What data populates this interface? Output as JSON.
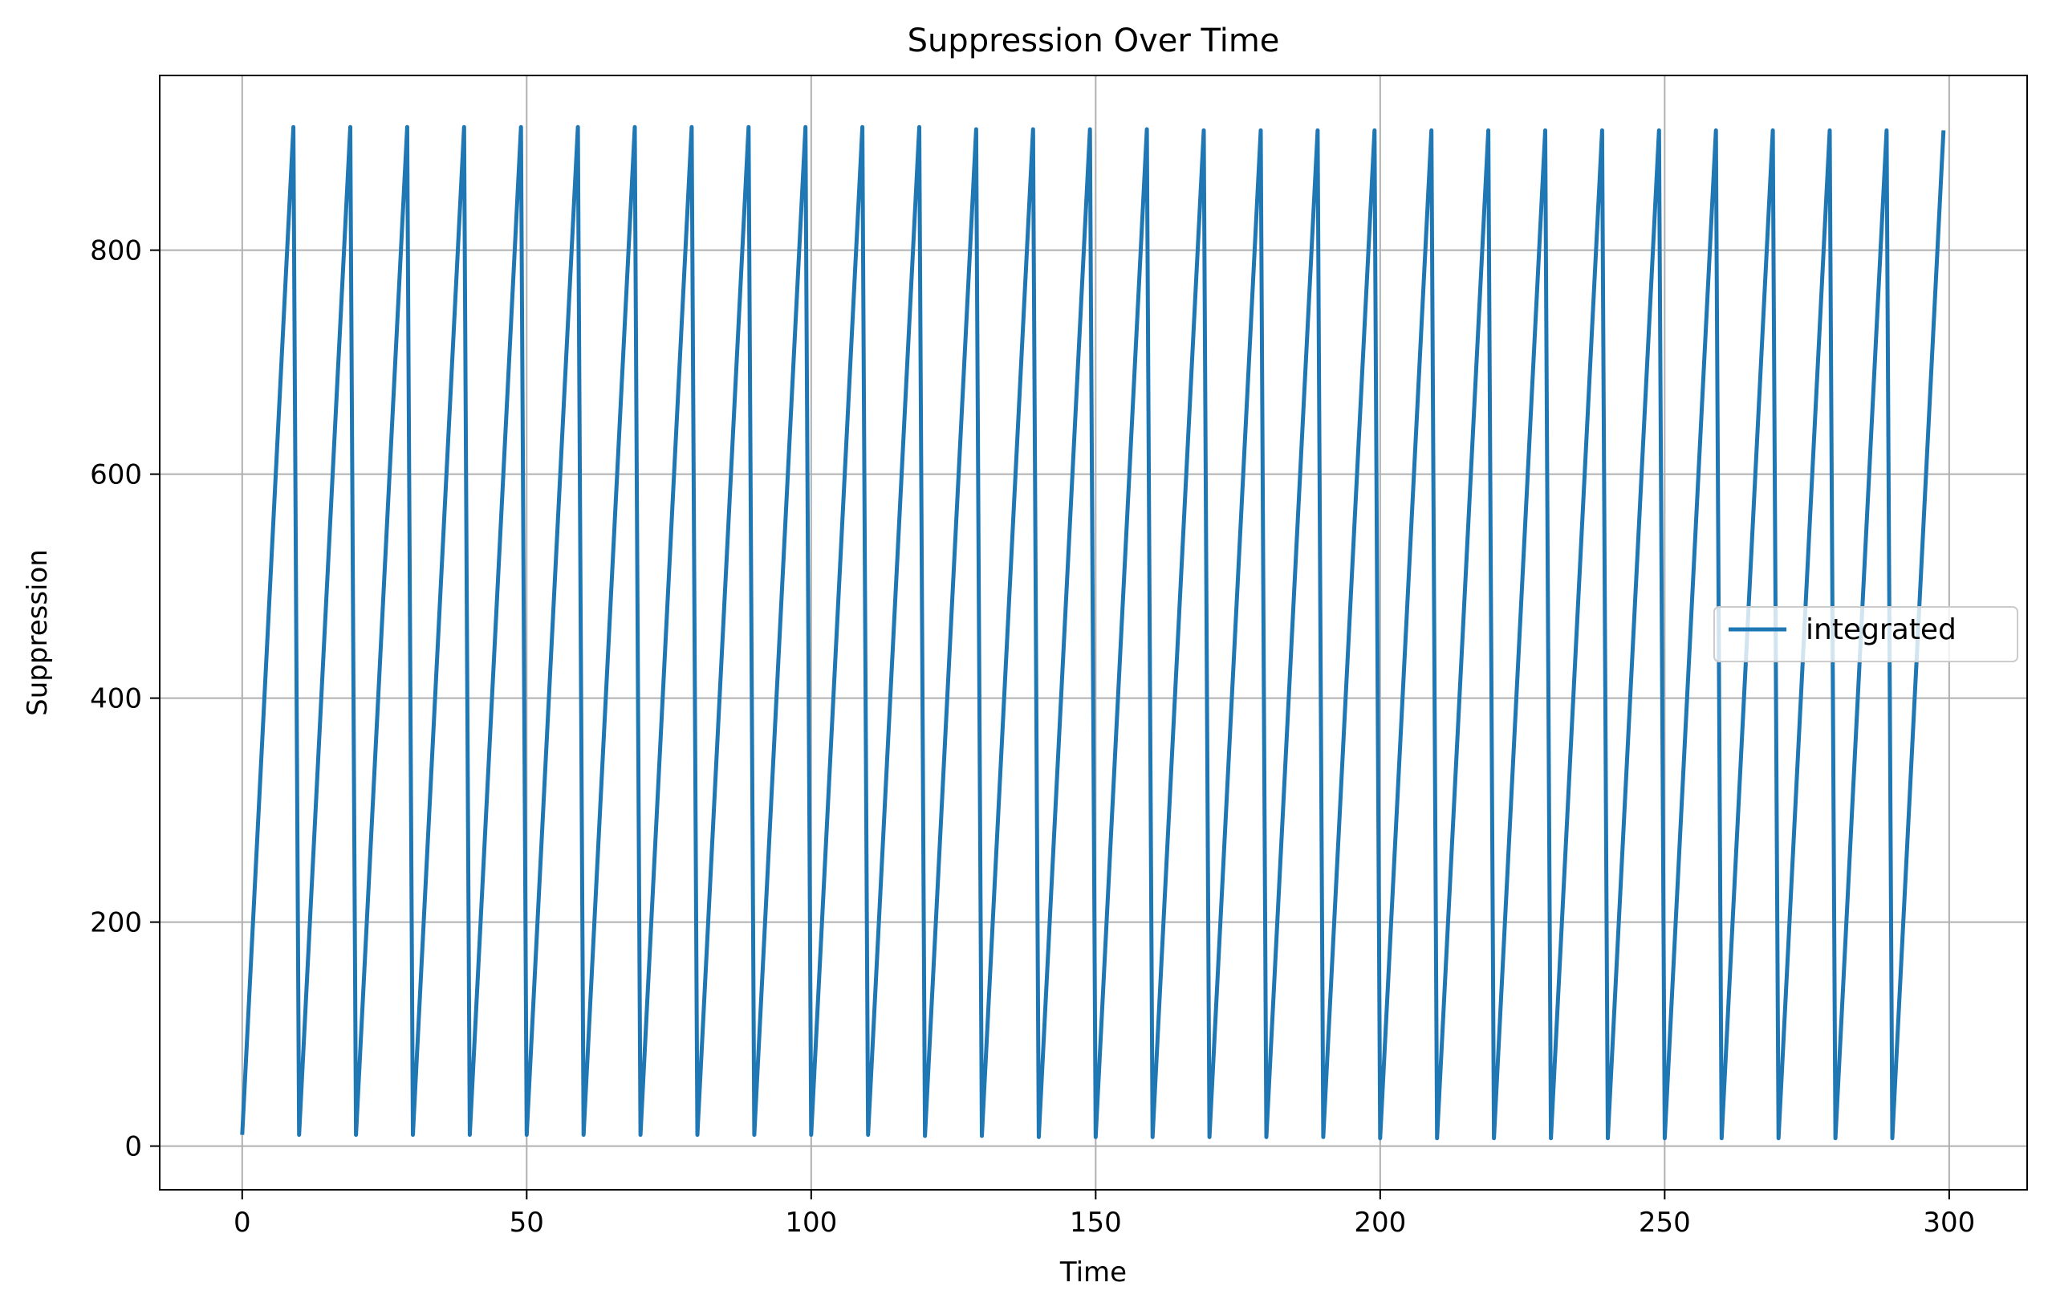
{
  "chart_data": {
    "type": "line",
    "title": "Suppression Over Time",
    "xlabel": "Time",
    "ylabel": "Suppression",
    "xlim": [
      -14.5,
      313.7
    ],
    "ylim": [
      -39,
      956
    ],
    "xticks": [
      0,
      50,
      100,
      150,
      200,
      250,
      300
    ],
    "yticks": [
      0,
      200,
      400,
      600,
      800
    ],
    "grid": true,
    "legend_position": "center-right",
    "series": [
      {
        "name": "integrated",
        "color": "#1f77b4",
        "x": [
          0,
          9,
          10,
          19,
          20,
          29,
          30,
          39,
          40,
          49,
          50,
          59,
          60,
          69,
          70,
          79,
          80,
          89,
          90,
          99,
          100,
          109,
          110,
          119,
          120,
          129,
          130,
          139,
          140,
          149,
          150,
          159,
          160,
          169,
          170,
          179,
          180,
          189,
          190,
          199,
          200,
          209,
          210,
          219,
          220,
          229,
          230,
          239,
          240,
          249,
          250,
          259,
          260,
          269,
          270,
          279,
          280,
          289,
          290,
          299
        ],
        "y": [
          10,
          910,
          10,
          910,
          10,
          910,
          10,
          910,
          10,
          910,
          10,
          910,
          10,
          910,
          10,
          910,
          10,
          910,
          10,
          910,
          10,
          910,
          10,
          910,
          9,
          908,
          9,
          908,
          8,
          908,
          8,
          908,
          8,
          907,
          8,
          907,
          8,
          907,
          8,
          907,
          7,
          907,
          7,
          907,
          7,
          907,
          7,
          907,
          7,
          907,
          7,
          907,
          7,
          907,
          7,
          907,
          7,
          907,
          7,
          907
        ]
      }
    ]
  }
}
